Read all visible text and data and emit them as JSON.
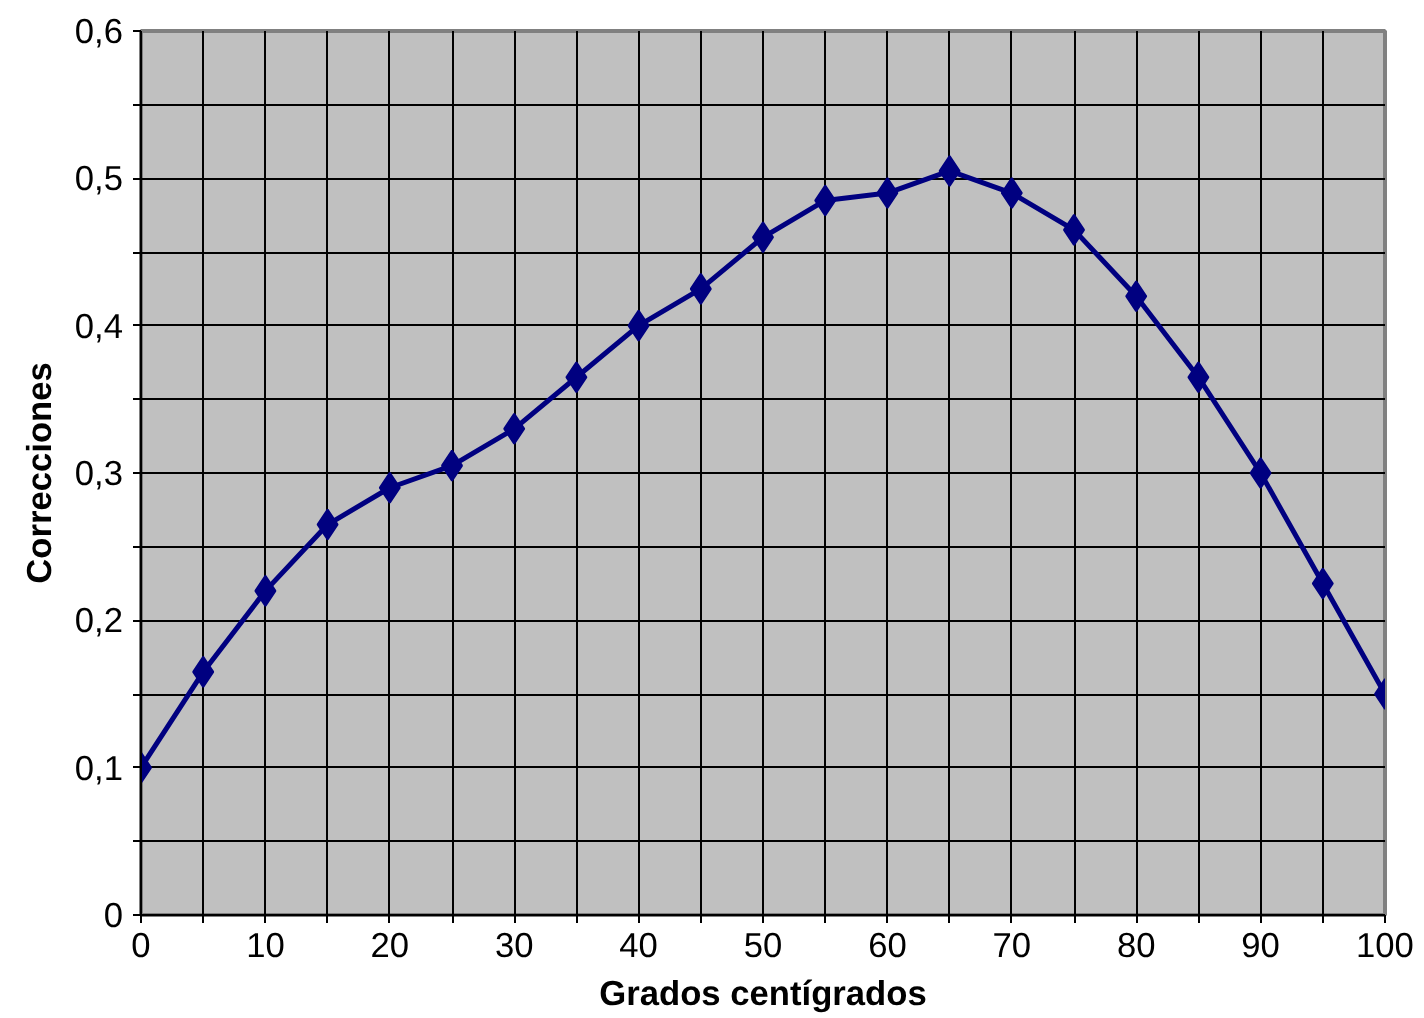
{
  "chart_data": {
    "type": "line",
    "xlabel": "Grados centígrados",
    "ylabel": "Correcciones",
    "x": [
      0,
      5,
      10,
      15,
      20,
      25,
      30,
      35,
      40,
      45,
      50,
      55,
      60,
      65,
      70,
      75,
      80,
      85,
      90,
      95,
      100
    ],
    "series": [
      {
        "color": "#000080",
        "values": [
          0.1,
          0.165,
          0.22,
          0.265,
          0.29,
          0.305,
          0.33,
          0.365,
          0.4,
          0.425,
          0.46,
          0.485,
          0.49,
          0.505,
          0.49,
          0.465,
          0.42,
          0.365,
          0.3,
          0.225,
          0.15
        ]
      }
    ],
    "xlim": [
      0,
      100
    ],
    "xticks": [
      0,
      {
        "value": 5,
        "label": null
      },
      10,
      {
        "value": 15,
        "label": null
      },
      20,
      {
        "value": 25,
        "label": null
      },
      30,
      {
        "value": 35,
        "label": null
      },
      40,
      {
        "value": 45,
        "label": null
      },
      50,
      {
        "value": 55,
        "label": null
      },
      60,
      {
        "value": 65,
        "label": null
      },
      70,
      {
        "value": 75,
        "label": null
      },
      80,
      {
        "value": 85,
        "label": null
      },
      90,
      {
        "value": 95,
        "label": null
      },
      100
    ],
    "ylim": [
      0,
      0.6
    ],
    "yticks": [
      0,
      {
        "value": 0.05,
        "label": null
      },
      {
        "value": 0.1,
        "label": "0,1"
      },
      {
        "value": 0.15,
        "label": null
      },
      {
        "value": 0.2,
        "label": "0,2"
      },
      {
        "value": 0.25,
        "label": null
      },
      {
        "value": 0.3,
        "label": "0,3"
      },
      {
        "value": 0.35,
        "label": null
      },
      {
        "value": 0.4,
        "label": "0,4"
      },
      {
        "value": 0.45,
        "label": null
      },
      {
        "value": 0.5,
        "label": "0,5"
      },
      {
        "value": 0.55,
        "label": null
      },
      {
        "value": 0.6,
        "label": "0,6"
      }
    ],
    "grid": true,
    "marker": "diamond",
    "line_style": "solid"
  }
}
